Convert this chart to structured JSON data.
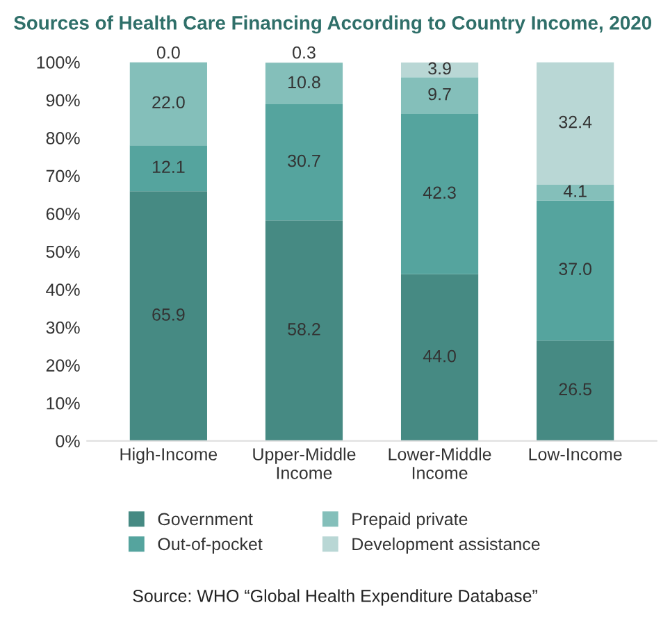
{
  "chart_data": {
    "type": "bar",
    "stacked": true,
    "title": "Sources of Health Care Financing According to Country Income, 2020",
    "categories": [
      "High-Income",
      "Upper-Middle\nIncome",
      "Lower-Middle\nIncome",
      "Low-Income"
    ],
    "series": [
      {
        "name": "Government",
        "color": "#468a83",
        "values": [
          65.9,
          58.2,
          44.0,
          26.5
        ],
        "value_labels": [
          "65.9",
          "58.2",
          "44.0",
          "26.5"
        ]
      },
      {
        "name": "Out-of-pocket",
        "color": "#55a49e",
        "values": [
          12.1,
          30.7,
          42.3,
          37.0
        ],
        "value_labels": [
          "12.1",
          "30.7",
          "42.3",
          "37.0"
        ]
      },
      {
        "name": "Prepaid private",
        "color": "#84bfba",
        "values": [
          22.0,
          10.8,
          9.7,
          4.1
        ],
        "value_labels": [
          "22.0",
          "10.8",
          "9.7",
          "4.1"
        ]
      },
      {
        "name": "Development assistance",
        "color": "#b9d7d5",
        "values": [
          0.0,
          0.3,
          3.9,
          32.4
        ],
        "value_labels": [
          "0.0",
          "0.3",
          "3.9",
          "32.4"
        ]
      }
    ],
    "ylim": [
      0,
      100
    ],
    "yticks": [
      {
        "value": 0,
        "label": "0%"
      },
      {
        "value": 10,
        "label": "10%"
      },
      {
        "value": 20,
        "label": "20%"
      },
      {
        "value": 30,
        "label": "30%"
      },
      {
        "value": 40,
        "label": "40%"
      },
      {
        "value": 50,
        "label": "50%"
      },
      {
        "value": 60,
        "label": "60%"
      },
      {
        "value": 70,
        "label": "70%"
      },
      {
        "value": 80,
        "label": "80%"
      },
      {
        "value": 90,
        "label": "90%"
      },
      {
        "value": 100,
        "label": "100%"
      }
    ],
    "grid": false,
    "legend": "bottom",
    "annotations": [
      "Source: WHO “Global Health Expenditure Database”"
    ]
  }
}
